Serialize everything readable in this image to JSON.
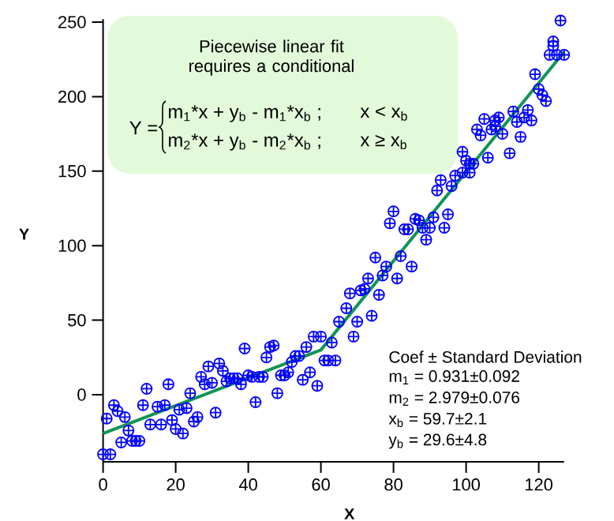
{
  "chart_data": {
    "type": "scatter",
    "xlabel": "X",
    "ylabel": "Y",
    "xlim": [
      0,
      127
    ],
    "ylim": [
      -45,
      252
    ],
    "xticks": [
      0,
      20,
      40,
      60,
      80,
      100,
      120
    ],
    "yticks": [
      0,
      50,
      100,
      150,
      200,
      250
    ],
    "marker": "cross",
    "annotations": [
      "Piecewise linear fit requires a conditional",
      "Y =",
      "m$_{1}$*x + y$_{b}$ - m$_{1}$*x$_{b}$ ;",
      "x < x$_{b}$",
      "m$_{2}$*x + y$_{b}$ - m$_{2}$*x$_{b}$ ;",
      "x ≥ x$_{b}$",
      "Coef ± Standard Deviation",
      "m$_{1}$ = 0.931±0.092",
      "m$_{2}$ = 2.979±0.076",
      "x$_{b}$ = 59.7±2.1",
      "y$_{b}$ = 29.6±4.8"
    ],
    "series": [
      {
        "color": "#0000ff",
        "x": [
          0,
          1,
          2,
          3,
          4,
          5,
          6,
          7,
          8,
          9,
          10,
          11,
          12,
          13,
          15,
          16,
          17,
          18,
          19,
          20,
          21,
          22,
          23,
          24,
          25,
          26,
          27,
          28,
          29,
          30,
          31,
          32,
          33,
          34,
          35,
          36,
          37,
          38,
          39,
          40,
          41,
          42,
          43,
          44,
          45,
          46,
          47,
          48,
          49,
          50,
          51,
          52,
          53,
          54,
          55,
          56,
          57,
          58,
          59,
          60,
          61,
          62,
          63,
          64,
          65,
          67,
          68,
          69,
          70,
          71,
          72,
          73,
          74,
          75,
          76,
          77,
          78,
          79,
          80,
          81,
          82,
          83,
          84,
          85,
          86,
          87,
          88,
          89,
          90,
          91,
          92,
          93,
          94,
          95,
          96,
          97,
          99,
          99,
          100,
          101,
          101,
          102,
          103,
          104,
          105,
          106,
          107,
          108,
          108,
          109,
          110,
          112,
          113,
          114,
          115,
          116,
          117,
          118,
          119,
          120,
          121,
          122,
          123,
          124,
          124,
          125,
          126,
          127
        ],
        "values": [
          -40,
          -16,
          -40,
          -7,
          -11,
          -32,
          -15,
          -24,
          -31,
          -31,
          -31,
          -7,
          4,
          -20,
          -8,
          -20,
          -7,
          7,
          -17,
          -23,
          -10,
          -26,
          -9,
          1,
          -18,
          -15,
          12,
          7,
          19,
          8,
          -12,
          21,
          16,
          9,
          11,
          11,
          11,
          7,
          31,
          13,
          12,
          -5,
          12,
          12,
          25,
          32,
          33,
          1,
          13,
          13,
          15,
          22,
          26,
          26,
          10,
          32,
          15,
          39,
          6,
          39,
          23,
          23,
          35,
          23,
          49,
          58,
          68,
          39,
          49,
          70,
          71,
          78,
          53,
          92,
          67,
          80,
          86,
          115,
          123,
          78,
          93,
          111,
          111,
          86,
          118,
          117,
          112,
          104,
          112,
          119,
          137,
          144,
          112,
          121,
          140,
          147,
          149,
          163,
          157,
          155,
          149,
          155,
          178,
          174,
          185,
          159,
          178,
          180,
          184,
          186,
          175,
          162,
          190,
          183,
          173,
          186,
          191,
          184,
          215,
          205,
          201,
          197,
          228,
          237,
          234,
          228,
          251,
          228
        ]
      },
      {
        "type": "line",
        "color": "#119455",
        "marker": "none",
        "x": [
          0,
          60,
          127
        ],
        "values": [
          -26,
          30,
          230
        ]
      }
    ]
  }
}
